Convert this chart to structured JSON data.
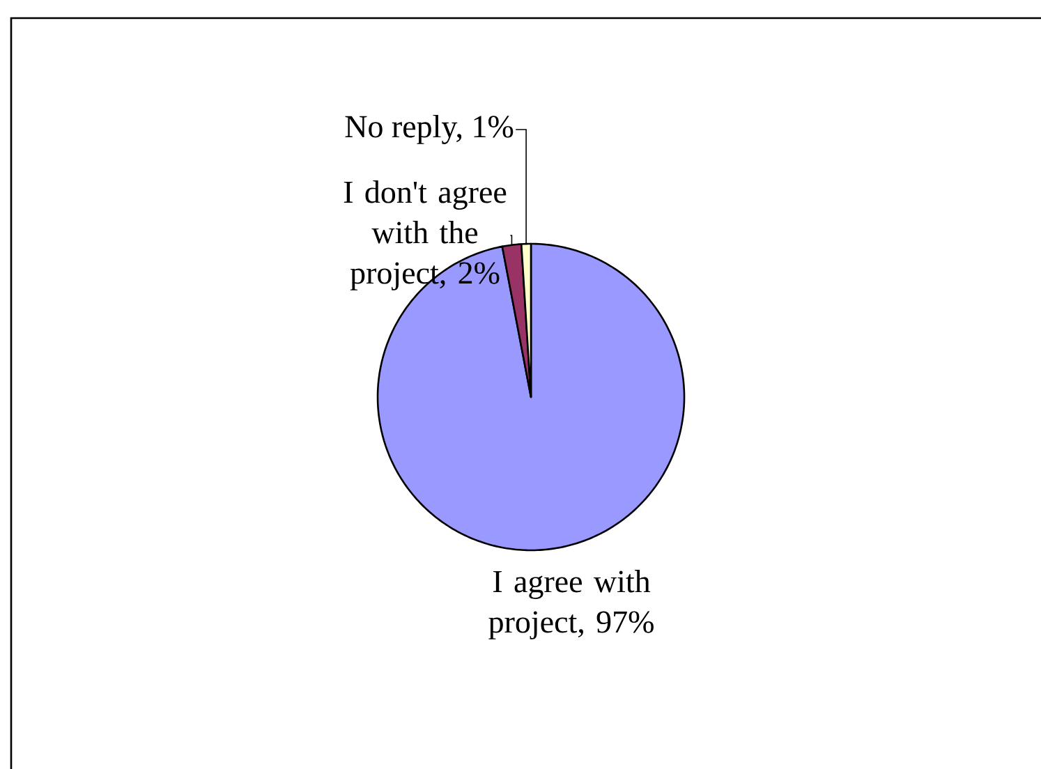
{
  "chart_data": {
    "type": "pie",
    "categories": [
      "I agree with project, 97%",
      "I don't agree with the project, 2%",
      "No reply, 1%"
    ],
    "values": [
      97,
      2,
      1
    ],
    "colors": [
      "#9999ff",
      "#993366",
      "#ffffcc"
    ]
  }
}
